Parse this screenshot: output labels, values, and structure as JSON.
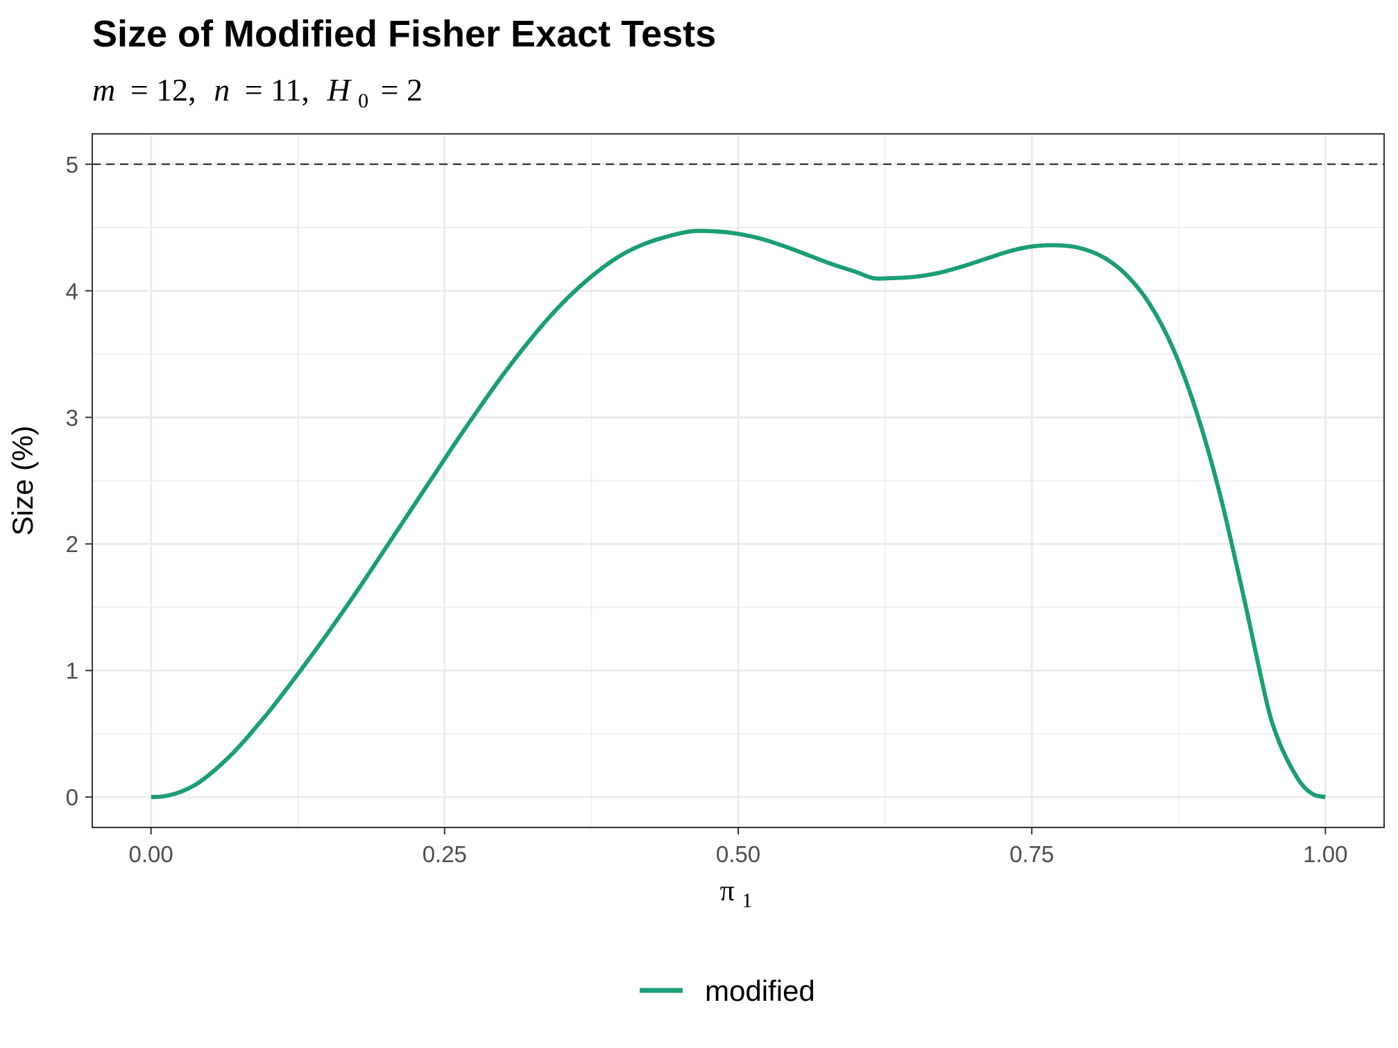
{
  "chart_data": {
    "type": "line",
    "title": "Size of Modified Fisher Exact Tests",
    "subtitle": {
      "m_symbol": "m",
      "m_value": "= 12,",
      "n_symbol": "n",
      "n_value": "= 11,",
      "h_symbol": "H",
      "h_subscript": "0",
      "h_value": "= 2"
    },
    "xlabel": {
      "symbol": "π",
      "subscript": "1"
    },
    "ylabel": "Size (%)",
    "xlim": [
      -0.05,
      1.05
    ],
    "ylim": [
      -0.24,
      5.24
    ],
    "x_ticks": [
      "0.00",
      "0.25",
      "0.50",
      "0.75",
      "1.00"
    ],
    "x_tick_values": [
      0,
      0.25,
      0.5,
      0.75,
      1.0
    ],
    "y_ticks": [
      "0",
      "1",
      "2",
      "3",
      "4",
      "5"
    ],
    "y_tick_values": [
      0,
      1,
      2,
      3,
      4,
      5
    ],
    "grid": true,
    "reference_line": {
      "y": 5,
      "style": "dashed",
      "color": "#444444"
    },
    "legend_position": "bottom",
    "series": [
      {
        "name": "modified",
        "color": "#1b9e77",
        "x": [
          0,
          0.01,
          0.02,
          0.03,
          0.04,
          0.05,
          0.06,
          0.07,
          0.08,
          0.09,
          0.1,
          0.12,
          0.14,
          0.16,
          0.18,
          0.2,
          0.22,
          0.24,
          0.26,
          0.28,
          0.3,
          0.32,
          0.34,
          0.36,
          0.38,
          0.4,
          0.42,
          0.44,
          0.46,
          0.48,
          0.5,
          0.52,
          0.54,
          0.56,
          0.58,
          0.6,
          0.615,
          0.63,
          0.65,
          0.67,
          0.69,
          0.71,
          0.73,
          0.75,
          0.77,
          0.79,
          0.81,
          0.83,
          0.85,
          0.87,
          0.89,
          0.91,
          0.93,
          0.95,
          0.96,
          0.97,
          0.98,
          0.99,
          1.0
        ],
        "values": [
          0.0,
          0.005,
          0.025,
          0.06,
          0.11,
          0.18,
          0.26,
          0.35,
          0.45,
          0.56,
          0.67,
          0.91,
          1.16,
          1.42,
          1.69,
          1.97,
          2.25,
          2.53,
          2.81,
          3.08,
          3.34,
          3.58,
          3.8,
          3.99,
          4.15,
          4.28,
          4.37,
          4.43,
          4.47,
          4.47,
          4.45,
          4.41,
          4.35,
          4.28,
          4.21,
          4.15,
          4.1,
          4.1,
          4.11,
          4.14,
          4.19,
          4.25,
          4.31,
          4.35,
          4.36,
          4.34,
          4.27,
          4.13,
          3.9,
          3.55,
          3.05,
          2.4,
          1.6,
          0.75,
          0.45,
          0.25,
          0.1,
          0.02,
          0.0
        ]
      }
    ]
  }
}
